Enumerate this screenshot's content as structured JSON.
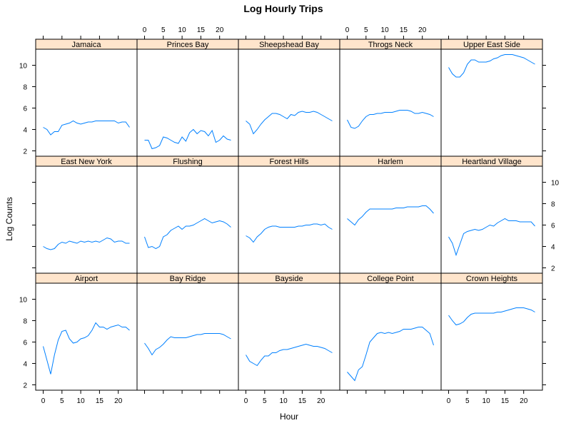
{
  "chart_data": {
    "type": "line",
    "title": "Log Hourly Trips",
    "xlabel": "Hour",
    "ylabel": "Log Counts",
    "xlim": [
      -2,
      25
    ],
    "ylim": [
      1.5,
      11.5
    ],
    "x_ticks": [
      0,
      5,
      10,
      15,
      20
    ],
    "y_ticks": [
      2,
      4,
      6,
      8,
      10
    ],
    "x": [
      0,
      1,
      2,
      3,
      4,
      5,
      6,
      7,
      8,
      9,
      10,
      11,
      12,
      13,
      14,
      15,
      16,
      17,
      18,
      19,
      20,
      21,
      22,
      23
    ],
    "colors": {
      "line": "#0080ff",
      "strip": "#ffe5cc",
      "frame": "#000000"
    },
    "panels": [
      {
        "name": "Jamaica",
        "values": [
          4.2,
          4.0,
          3.5,
          3.8,
          3.8,
          4.4,
          4.5,
          4.6,
          4.8,
          4.6,
          4.5,
          4.6,
          4.7,
          4.7,
          4.8,
          4.8,
          4.8,
          4.8,
          4.8,
          4.8,
          4.6,
          4.7,
          4.7,
          4.2
        ]
      },
      {
        "name": "Princes Bay",
        "values": [
          3.0,
          3.0,
          2.2,
          2.3,
          2.5,
          3.3,
          3.2,
          3.0,
          2.8,
          2.7,
          3.3,
          2.9,
          3.7,
          4.0,
          3.6,
          3.9,
          3.8,
          3.4,
          3.9,
          2.8,
          3.0,
          3.4,
          3.1,
          3.0
        ]
      },
      {
        "name": "Sheepshead Bay",
        "values": [
          4.8,
          4.5,
          3.6,
          4.0,
          4.5,
          4.9,
          5.2,
          5.5,
          5.5,
          5.4,
          5.2,
          5.0,
          5.4,
          5.3,
          5.6,
          5.7,
          5.6,
          5.6,
          5.7,
          5.6,
          5.4,
          5.2,
          5.0,
          4.8
        ]
      },
      {
        "name": "Throgs Neck",
        "values": [
          4.9,
          4.2,
          4.1,
          4.3,
          4.8,
          5.2,
          5.4,
          5.4,
          5.5,
          5.5,
          5.6,
          5.6,
          5.6,
          5.7,
          5.8,
          5.8,
          5.8,
          5.7,
          5.5,
          5.5,
          5.6,
          5.5,
          5.4,
          5.2
        ]
      },
      {
        "name": "Upper East Side",
        "values": [
          9.8,
          9.2,
          8.9,
          8.9,
          9.3,
          10.1,
          10.5,
          10.5,
          10.3,
          10.3,
          10.3,
          10.4,
          10.6,
          10.7,
          10.9,
          11.0,
          11.0,
          11.0,
          10.9,
          10.8,
          10.7,
          10.5,
          10.3,
          10.1
        ]
      },
      {
        "name": "East New York",
        "values": [
          4.0,
          3.8,
          3.7,
          3.8,
          4.2,
          4.4,
          4.3,
          4.5,
          4.4,
          4.3,
          4.5,
          4.4,
          4.5,
          4.4,
          4.5,
          4.4,
          4.6,
          4.8,
          4.7,
          4.4,
          4.5,
          4.5,
          4.3,
          4.3
        ]
      },
      {
        "name": "Flushing",
        "values": [
          4.9,
          3.9,
          4.0,
          3.8,
          4.0,
          4.9,
          5.1,
          5.5,
          5.7,
          5.9,
          5.6,
          5.9,
          5.9,
          6.0,
          6.2,
          6.4,
          6.6,
          6.4,
          6.2,
          6.3,
          6.4,
          6.3,
          6.1,
          5.8
        ]
      },
      {
        "name": "Forest Hills",
        "values": [
          5.0,
          4.8,
          4.4,
          4.9,
          5.2,
          5.6,
          5.8,
          5.9,
          5.9,
          5.8,
          5.8,
          5.8,
          5.8,
          5.8,
          5.9,
          5.9,
          6.0,
          6.0,
          6.1,
          6.1,
          6.0,
          6.1,
          5.8,
          5.6
        ]
      },
      {
        "name": "Harlem",
        "values": [
          6.6,
          6.3,
          6.0,
          6.5,
          6.8,
          7.2,
          7.5,
          7.5,
          7.5,
          7.5,
          7.5,
          7.5,
          7.5,
          7.6,
          7.6,
          7.6,
          7.7,
          7.7,
          7.7,
          7.7,
          7.8,
          7.8,
          7.5,
          7.1
        ]
      },
      {
        "name": "Heartland Village",
        "values": [
          4.9,
          4.3,
          3.2,
          4.2,
          5.2,
          5.4,
          5.5,
          5.6,
          5.5,
          5.6,
          5.8,
          6.0,
          5.9,
          6.2,
          6.4,
          6.6,
          6.4,
          6.4,
          6.4,
          6.3,
          6.3,
          6.3,
          6.3,
          5.9
        ]
      },
      {
        "name": "Airport",
        "values": [
          5.6,
          4.3,
          3.0,
          4.8,
          6.2,
          7.0,
          7.1,
          6.3,
          5.9,
          6.0,
          6.3,
          6.4,
          6.6,
          7.1,
          7.8,
          7.4,
          7.4,
          7.2,
          7.4,
          7.5,
          7.6,
          7.4,
          7.4,
          7.1
        ]
      },
      {
        "name": "Bay Ridge",
        "values": [
          5.9,
          5.4,
          4.8,
          5.3,
          5.5,
          5.8,
          6.2,
          6.5,
          6.4,
          6.4,
          6.4,
          6.4,
          6.5,
          6.6,
          6.7,
          6.7,
          6.8,
          6.8,
          6.8,
          6.8,
          6.8,
          6.7,
          6.5,
          6.3
        ]
      },
      {
        "name": "Bayside",
        "values": [
          4.8,
          4.2,
          4.0,
          3.8,
          4.3,
          4.7,
          4.7,
          5.0,
          5.0,
          5.2,
          5.3,
          5.3,
          5.4,
          5.5,
          5.6,
          5.7,
          5.8,
          5.7,
          5.6,
          5.6,
          5.5,
          5.4,
          5.2,
          5.0
        ]
      },
      {
        "name": "College Point",
        "values": [
          3.2,
          2.8,
          2.4,
          3.4,
          3.7,
          4.8,
          6.0,
          6.4,
          6.8,
          6.9,
          6.8,
          6.9,
          6.8,
          6.9,
          7.0,
          7.2,
          7.2,
          7.2,
          7.3,
          7.4,
          7.4,
          7.1,
          6.8,
          5.7
        ]
      },
      {
        "name": "Crown Heights",
        "values": [
          8.5,
          8.0,
          7.6,
          7.7,
          7.9,
          8.3,
          8.6,
          8.7,
          8.7,
          8.7,
          8.7,
          8.7,
          8.7,
          8.8,
          8.8,
          8.9,
          9.0,
          9.1,
          9.2,
          9.2,
          9.2,
          9.1,
          9.0,
          8.8
        ]
      }
    ]
  }
}
